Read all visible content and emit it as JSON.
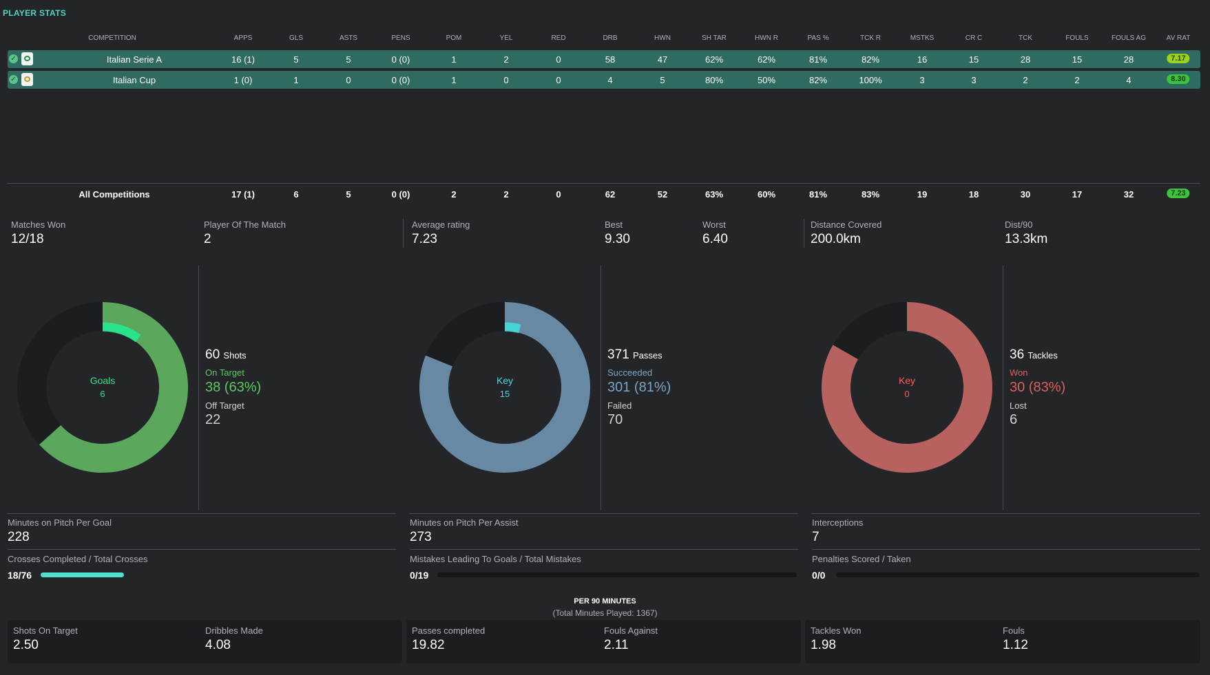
{
  "title": "PLAYER STATS",
  "columns": [
    "COMPETITION",
    "APPS",
    "GLS",
    "ASTS",
    "PENS",
    "POM",
    "YEL",
    "RED",
    "DRB",
    "HWN",
    "SH TAR",
    "HWN R",
    "PAS %",
    "TCK R",
    "MSTKS",
    "CR C",
    "TCK",
    "FOULS",
    "FOULS AG",
    "AV RAT"
  ],
  "rows": [
    {
      "name": "Italian Serie A",
      "vals": [
        "16 (1)",
        "5",
        "5",
        "0 (0)",
        "1",
        "2",
        "0",
        "58",
        "47",
        "62%",
        "62%",
        "81%",
        "82%",
        "16",
        "15",
        "28",
        "15",
        "28"
      ],
      "rating": "7.17"
    },
    {
      "name": "Italian Cup",
      "vals": [
        "1 (0)",
        "1",
        "0",
        "0 (0)",
        "1",
        "0",
        "0",
        "4",
        "5",
        "80%",
        "50%",
        "82%",
        "100%",
        "3",
        "3",
        "2",
        "2",
        "4"
      ],
      "rating": "8.30"
    }
  ],
  "totals": {
    "name": "All Competitions",
    "vals": [
      "17 (1)",
      "6",
      "5",
      "0 (0)",
      "2",
      "2",
      "0",
      "62",
      "52",
      "63%",
      "60%",
      "81%",
      "83%",
      "19",
      "18",
      "30",
      "17",
      "32"
    ],
    "rating": "7.23"
  },
  "summary": {
    "matches_won_label": "Matches Won",
    "matches_won": "12/18",
    "pom_label": "Player Of The Match",
    "pom": "2",
    "avg_label": "Average rating",
    "avg": "7.23",
    "best_label": "Best",
    "best": "9.30",
    "worst_label": "Worst",
    "worst": "6.40",
    "dist_label": "Distance Covered",
    "dist": "200.0km",
    "dist90_label": "Dist/90",
    "dist90": "13.3km"
  },
  "donuts": {
    "shots": {
      "center_label": "Goals",
      "center_value": "6",
      "total": "60",
      "total_label": "Shots",
      "good_label": "On Target",
      "good": "38 (63%)",
      "bad_label": "Off Target",
      "bad": "22",
      "fraction": 0.633,
      "inner_fraction": 0.1,
      "color": "#5ba75c",
      "inner_color": "#27e38a",
      "text_color": "#5ec85f"
    },
    "passes": {
      "center_label": "Key",
      "center_value": "15",
      "total": "371",
      "total_label": "Passes",
      "good_label": "Succeeded",
      "good": "301 (81%)",
      "bad_label": "Failed",
      "bad": "70",
      "fraction": 0.811,
      "inner_fraction": 0.04,
      "color": "#6789a3",
      "inner_color": "#43d4d8",
      "text_color": "#7ba6c4"
    },
    "tackles": {
      "center_label": "Key",
      "center_value": "0",
      "total": "36",
      "total_label": "Tackles",
      "good_label": "Won",
      "good": "30 (83%)",
      "bad_label": "Lost",
      "bad": "6",
      "fraction": 0.833,
      "inner_fraction": 0,
      "color": "#b8625f",
      "inner_color": "#ff4b4b",
      "text_color": "#d7625e"
    }
  },
  "metrics": {
    "mpg_label": "Minutes on Pitch Per Goal",
    "mpg": "228",
    "mpa_label": "Minutes on Pitch Per Assist",
    "mpa": "273",
    "int_label": "Interceptions",
    "int": "7",
    "crosses_label": "Crosses Completed / Total Crosses",
    "crosses": "18/76",
    "crosses_fraction": 0.237,
    "mistakes_label": "Mistakes Leading To Goals / Total Mistakes",
    "mistakes": "0/19",
    "mistakes_fraction": 0,
    "pens_label": "Penalties Scored / Taken",
    "pens": "0/0",
    "pens_fraction": 0
  },
  "per90": {
    "title": "PER 90 MINUTES",
    "subtitle": "(Total Minutes Played: 1367)",
    "items": [
      {
        "label": "Shots On Target",
        "value": "2.50"
      },
      {
        "label": "Dribbles Made",
        "value": "4.08"
      },
      {
        "label": "Passes completed",
        "value": "19.82"
      },
      {
        "label": "Fouls Against",
        "value": "2.11"
      },
      {
        "label": "Tackles Won",
        "value": "1.98"
      },
      {
        "label": "Fouls",
        "value": "1.12"
      }
    ]
  }
}
